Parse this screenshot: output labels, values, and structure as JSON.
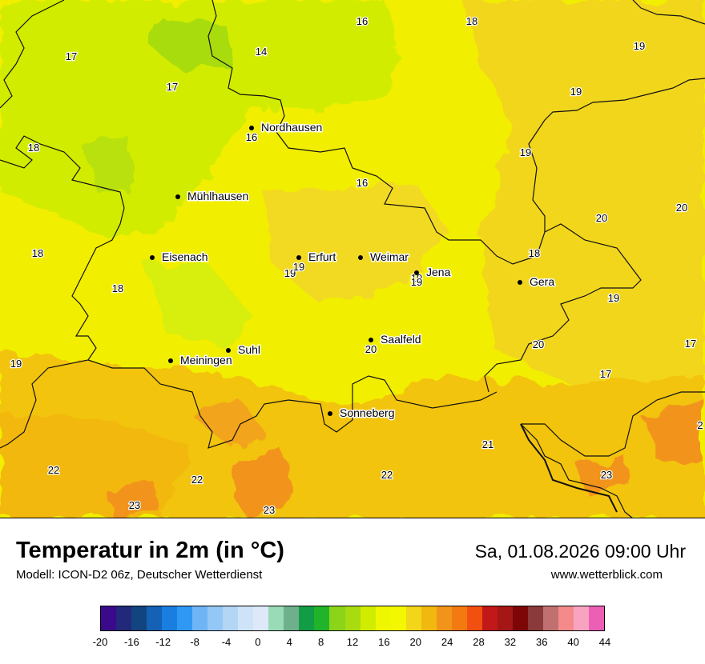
{
  "map": {
    "cities": [
      {
        "name": "Nordhausen",
        "temp": "16"
      },
      {
        "name": "Mühlhausen",
        "temp": ""
      },
      {
        "name": "Eisenach",
        "temp": ""
      },
      {
        "name": "Erfurt",
        "temp": "19"
      },
      {
        "name": "Weimar",
        "temp": ""
      },
      {
        "name": "Jena",
        "temp": "19"
      },
      {
        "name": "Gera",
        "temp": ""
      },
      {
        "name": "Saalfeld",
        "temp": "20"
      },
      {
        "name": "Suhl",
        "temp": ""
      },
      {
        "name": "Meiningen",
        "temp": ""
      },
      {
        "name": "Sonneberg",
        "temp": ""
      }
    ],
    "temperature_labels": [
      "16",
      "18",
      "17",
      "14",
      "19",
      "17",
      "19",
      "18",
      "19",
      "16",
      "20",
      "20",
      "18",
      "18",
      "18",
      "19",
      "19",
      "19",
      "20",
      "17",
      "17",
      "19",
      "21",
      "22",
      "22",
      "22",
      "23",
      "23",
      "23",
      "2"
    ]
  },
  "header": {
    "title": "Temperatur in 2m (in °C)",
    "model": "Modell: ICON-D2 06z, Deutscher Wetterdienst",
    "datetime": "Sa, 01.08.2026 09:00 Uhr",
    "website": "www.wetterblick.com"
  },
  "legend": {
    "colors": [
      "#3a0a8a",
      "#22297a",
      "#12457f",
      "#1461b5",
      "#1a7ee0",
      "#2f98f5",
      "#6fb5f5",
      "#93c7f5",
      "#b3d6f5",
      "#cfe3f8",
      "#dde9f9",
      "#98dbb6",
      "#6fb08c",
      "#129c46",
      "#21b32a",
      "#8bd41a",
      "#a8dc10",
      "#d2ec00",
      "#eff700",
      "#f3f700",
      "#f2d61a",
      "#f2b810",
      "#f2941a",
      "#f27a10",
      "#f25010",
      "#c21818",
      "#a51616",
      "#7d0707",
      "#8a3a3a",
      "#c07070",
      "#f48a8a",
      "#f8a4c0",
      "#ec5fb5"
    ],
    "ticks": [
      "-20",
      "-16",
      "-12",
      "-8",
      "-4",
      "0",
      "4",
      "8",
      "12",
      "16",
      "20",
      "24",
      "28",
      "32",
      "36",
      "40",
      "44"
    ]
  }
}
